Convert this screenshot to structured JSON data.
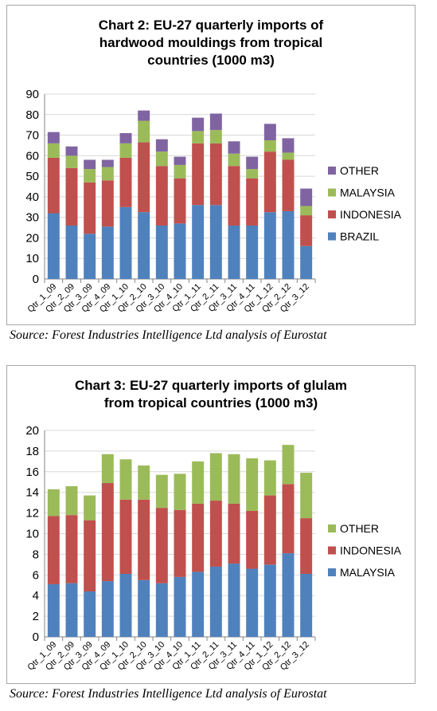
{
  "chart_data": [
    {
      "type": "bar",
      "stacked": true,
      "title_lines": [
        "Chart 2: EU-27 quarterly imports of",
        "hardwood mouldings from tropical",
        "countries  (1000 m3)"
      ],
      "categories": [
        "Qtr_1_09",
        "Qtr_2_09",
        "Qtr_3_09",
        "Qtr_4_09",
        "Qtr_1_10",
        "Qtr_2_10",
        "Qtr_3_10",
        "Qtr_4_10",
        "Qtr_1_11",
        "Qtr_2_11",
        "Qtr_3_11",
        "Qtr_4_11",
        "Qtr_1_12",
        "Qtr_2_12",
        "Qtr_3_12"
      ],
      "series": [
        {
          "name": "BRAZIL",
          "color": "#4f81bd",
          "values": [
            32,
            26,
            22,
            25.5,
            35,
            32.5,
            26,
            27,
            36,
            36,
            26,
            26,
            32.5,
            33,
            16
          ]
        },
        {
          "name": "INDONESIA",
          "color": "#c0504d",
          "values": [
            27,
            28,
            25,
            22.5,
            24,
            34,
            29,
            22,
            30,
            30,
            29,
            23,
            29.5,
            25,
            15
          ]
        },
        {
          "name": "MALAYSIA",
          "color": "#9bbb59",
          "values": [
            7,
            6,
            6.5,
            6.5,
            7,
            10.5,
            7,
            6.5,
            6,
            6.5,
            6,
            4.5,
            5.5,
            3.5,
            4.5
          ]
        },
        {
          "name": "OTHER",
          "color": "#8064a2",
          "values": [
            5.5,
            4.5,
            4.5,
            3.5,
            5,
            5,
            6,
            4,
            6.5,
            8,
            6,
            6,
            8,
            7,
            8.5
          ]
        }
      ],
      "ylim": [
        0,
        90
      ],
      "yticks": [
        0,
        10,
        20,
        30,
        40,
        50,
        60,
        70,
        80,
        90
      ],
      "grid": true,
      "legend_position": "right"
    },
    {
      "type": "bar",
      "stacked": true,
      "title_lines": [
        "Chart 3: EU-27 quarterly imports of glulam",
        "from tropical countries  (1000 m3)"
      ],
      "categories": [
        "Qtr_1_09",
        "Qtr_2_09",
        "Qtr_3_09",
        "Qtr_4_09",
        "Qtr_1_10",
        "Qtr_2_10",
        "Qtr_3_10",
        "Qtr_4_10",
        "Qtr_1_11",
        "Qtr_2_11",
        "Qtr_3_11",
        "Qtr_4_11",
        "Qtr_1_12",
        "Qtr_2_12",
        "Qtr_3_12"
      ],
      "series": [
        {
          "name": "MALAYSIA",
          "color": "#4f81bd",
          "values": [
            5.1,
            5.2,
            4.4,
            5.4,
            6.1,
            5.5,
            5.2,
            5.8,
            6.3,
            6.8,
            7.1,
            6.6,
            7.0,
            8.1,
            6.1
          ]
        },
        {
          "name": "INDONESIA",
          "color": "#c0504d",
          "values": [
            6.6,
            6.6,
            6.9,
            9.5,
            7.2,
            7.8,
            7.3,
            6.5,
            6.6,
            6.4,
            5.8,
            5.6,
            6.7,
            6.7,
            5.4
          ]
        },
        {
          "name": "OTHER",
          "color": "#9bbb59",
          "values": [
            2.6,
            2.8,
            2.4,
            2.8,
            3.9,
            3.3,
            3.2,
            3.5,
            4.1,
            4.6,
            4.8,
            5.1,
            3.4,
            3.8,
            4.4
          ]
        }
      ],
      "ylim": [
        0,
        20
      ],
      "yticks": [
        0,
        2,
        4,
        6,
        8,
        10,
        12,
        14,
        16,
        18,
        20
      ],
      "grid": true,
      "legend_position": "right"
    }
  ],
  "sources": [
    "Source: Forest Industries Intelligence Ltd analysis of Eurostat",
    "Source: Forest Industries Intelligence Ltd analysis of Eurostat"
  ]
}
